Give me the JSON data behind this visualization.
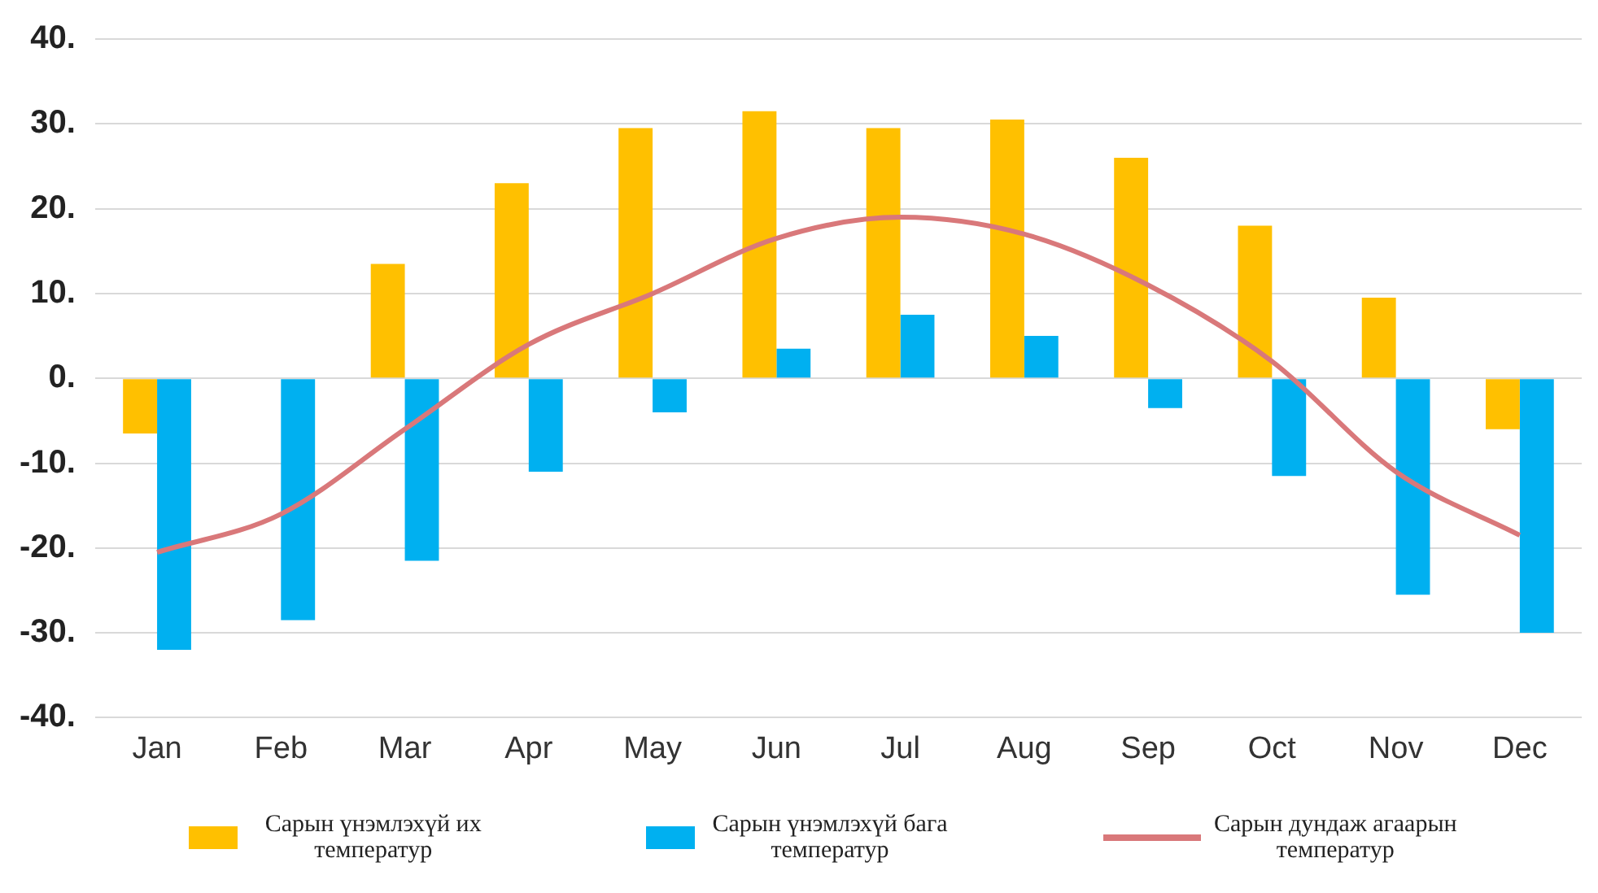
{
  "chart_data": {
    "type": "bar",
    "categories": [
      "Jan",
      "Feb",
      "Mar",
      "Apr",
      "May",
      "Jun",
      "Jul",
      "Aug",
      "Sep",
      "Oct",
      "Nov",
      "Dec"
    ],
    "series": [
      {
        "name": "Сарын үнэмлэхүй их температур",
        "color": "#ffc000",
        "values": [
          -6.5,
          0,
          13.5,
          23,
          29.5,
          31.5,
          29.5,
          30.5,
          26,
          18,
          9.5,
          -6
        ]
      },
      {
        "name": "Сарын үнэмлэхүй бага температур",
        "color": "#00b0f0",
        "values": [
          -32,
          -28.5,
          -21.5,
          -11,
          -4,
          3.5,
          7.5,
          5,
          -3.5,
          -11.5,
          -25.5,
          -30
        ]
      },
      {
        "name": "Сарын дундаж агаарын температур",
        "color": "#d9787a",
        "type": "line",
        "values": [
          -20.5,
          -16,
          -6,
          4,
          10,
          16.5,
          19,
          17,
          11,
          2,
          -11,
          -18.5
        ]
      }
    ],
    "ylim": [
      -40,
      40
    ],
    "yticks": [
      {
        "value": -40,
        "label": "-40."
      },
      {
        "value": -30,
        "label": "-30."
      },
      {
        "value": -20,
        "label": "-20."
      },
      {
        "value": -10,
        "label": "-10."
      },
      {
        "value": 0,
        "label": "0."
      },
      {
        "value": 10,
        "label": "10."
      },
      {
        "value": 20,
        "label": "20."
      },
      {
        "value": 30,
        "label": "30."
      },
      {
        "value": 40,
        "label": "40."
      }
    ],
    "grid": "y",
    "legend": "bottom",
    "marker": "none"
  }
}
